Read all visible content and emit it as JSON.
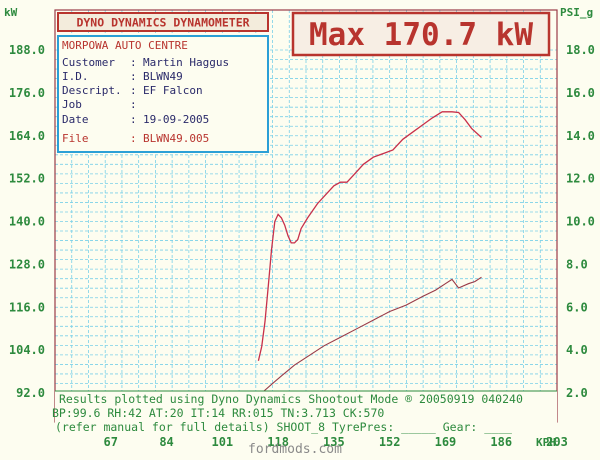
{
  "header": {
    "brand": "DYNO DYNAMICS DYNAMOMETER",
    "max_display": "Max 170.7 kW"
  },
  "info": {
    "company": "MORPOWA AUTO CENTRE",
    "rows": [
      {
        "label": "Customer",
        "value": "Martin Haggus"
      },
      {
        "label": "I.D.",
        "value": "BLWN49"
      },
      {
        "label": "Descript.",
        "value": "EF Falcon"
      },
      {
        "label": "Job",
        "value": ""
      },
      {
        "label": "Date",
        "value": "19-09-2005"
      },
      {
        "label": "File",
        "value": "BLWN49.005"
      }
    ]
  },
  "footer": {
    "line1": "Results plotted using Dyno Dynamics Shootout Mode ® 20050919 040240",
    "line2": "BP:99.6  RH:42 AT:20 IT:14  RR:015 TN:3.713 CK:570",
    "line3": "(refer manual for full details) SHOOT_8  TyrePres: _____ Gear: ____"
  },
  "watermark": "fordmods.com",
  "colors": {
    "axis_text": "#2d8a3e",
    "grid": "#7ad0e8",
    "frame": "#b8342e",
    "power_curve": "#c8304a",
    "boost_curve": "#9a3a48"
  },
  "chart_data": {
    "type": "line",
    "title": "Max 170.7 kW",
    "y_left": {
      "unit": "kW",
      "min": 92.0,
      "max": 188.0,
      "ticks": [
        "188.0",
        "176.0",
        "164.0",
        "152.0",
        "140.0",
        "128.0",
        "116.0",
        "104.0",
        "92.0"
      ]
    },
    "y_right": {
      "unit": "PSI_g",
      "min": 2.0,
      "max": 18.0,
      "ticks": [
        "18.0",
        "16.0",
        "14.0",
        "12.0",
        "10.0",
        "8.0",
        "6.0",
        "4.0",
        "2.0"
      ]
    },
    "x": {
      "unit": "KPH",
      "min": 50,
      "max": 203,
      "ticks": [
        "67",
        "84",
        "101",
        "118",
        "135",
        "152",
        "169",
        "186",
        "203"
      ]
    },
    "grid": true,
    "series": [
      {
        "axis": "left",
        "points": [
          [
            112,
            101
          ],
          [
            113,
            105
          ],
          [
            114,
            112
          ],
          [
            115,
            122
          ],
          [
            116,
            132
          ],
          [
            117,
            140
          ],
          [
            118,
            142
          ],
          [
            119,
            141
          ],
          [
            120,
            139
          ],
          [
            121,
            136
          ],
          [
            122,
            134
          ],
          [
            123,
            134
          ],
          [
            124,
            135
          ],
          [
            125,
            138
          ],
          [
            127,
            141
          ],
          [
            130,
            145
          ],
          [
            133,
            148
          ],
          [
            135,
            150
          ],
          [
            137,
            151
          ],
          [
            139,
            151
          ],
          [
            141,
            153
          ],
          [
            144,
            156
          ],
          [
            147,
            158
          ],
          [
            150,
            159
          ],
          [
            153,
            160
          ],
          [
            156,
            163
          ],
          [
            159,
            165
          ],
          [
            162,
            167
          ],
          [
            165,
            169
          ],
          [
            168,
            170.7
          ],
          [
            171,
            170.7
          ],
          [
            173,
            170.5
          ],
          [
            175,
            168.5
          ],
          [
            177,
            166
          ],
          [
            180,
            163.5
          ]
        ]
      },
      {
        "axis": "right",
        "points": [
          [
            113,
            2.0
          ],
          [
            116,
            2.4
          ],
          [
            119,
            2.8
          ],
          [
            123,
            3.3
          ],
          [
            127,
            3.7
          ],
          [
            132,
            4.2
          ],
          [
            137,
            4.6
          ],
          [
            142,
            5.0
          ],
          [
            147,
            5.4
          ],
          [
            152,
            5.8
          ],
          [
            157,
            6.1
          ],
          [
            162,
            6.5
          ],
          [
            166,
            6.8
          ],
          [
            169,
            7.1
          ],
          [
            171,
            7.3
          ],
          [
            173,
            6.9
          ],
          [
            176,
            7.1
          ],
          [
            178,
            7.2
          ],
          [
            180,
            7.4
          ]
        ]
      }
    ]
  }
}
